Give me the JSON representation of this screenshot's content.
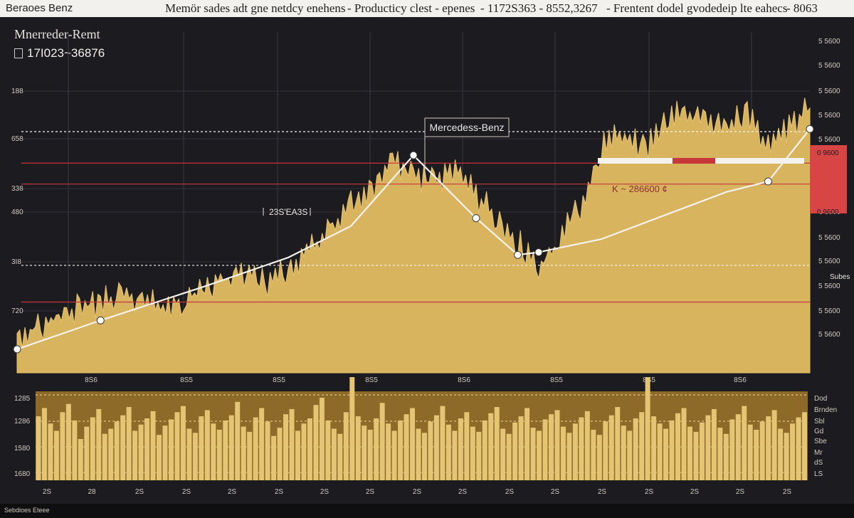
{
  "header": {
    "brand": "Beraoes Benz",
    "items": [
      "Memör sades adt gne netdcy enehens",
      "- Producticy clest - epenes",
      "- 1172S363 - 8552,3267",
      "- Frentent dodel gvodedeip lte eahecs",
      "- 8063"
    ]
  },
  "ticker": {
    "name": "Mnerreder-Remt",
    "range": "17I023~36876"
  },
  "annotations": {
    "callout": "Mercedess-Benz",
    "label_mid": "23S'EA3S",
    "label_right": "K ~ 286600 ¢",
    "right_badge_1": "0 9600",
    "right_badge_2": "0 9600",
    "right_side_label": "Subes"
  },
  "footer": {
    "text": "Sebdioes Eteee"
  },
  "colors": {
    "background": "#1c1b1f",
    "price_fill": "#d9b45f",
    "volume_bar": "#e3c574",
    "volume_panel": "#8e6a28",
    "trend_line": "#f4f2ee",
    "red_line": "#c8373a",
    "red_badge": "#d84545"
  },
  "chart_data": [
    {
      "type": "area",
      "title": "Mercedess-Benz",
      "y_tick_labels_left": [
        "188",
        "658",
        "338",
        "480",
        "3I8",
        "720"
      ],
      "y_tick_labels_right": [
        "5 5600",
        "5 5600",
        "5 5600",
        "5 5600",
        "5 5600",
        "0 9600",
        "5 5600",
        "0 9600",
        "5 5600",
        "5 5600",
        "5 5600",
        "5 5600",
        "5 5600",
        "5 5600"
      ],
      "x_tick_labels": [
        "8S6",
        "8S5",
        "8S5",
        "8S5",
        "8S6",
        "8S5",
        "8S5",
        "8S6"
      ],
      "price_series": [
        {
          "x": 0,
          "y": 15
        },
        {
          "x": 1,
          "y": 17
        },
        {
          "x": 2,
          "y": 22
        },
        {
          "x": 3,
          "y": 25
        },
        {
          "x": 4,
          "y": 27
        },
        {
          "x": 5,
          "y": 30
        },
        {
          "x": 6,
          "y": 27
        },
        {
          "x": 7,
          "y": 25
        },
        {
          "x": 8,
          "y": 28
        },
        {
          "x": 9,
          "y": 33
        },
        {
          "x": 10,
          "y": 36
        },
        {
          "x": 11,
          "y": 38
        },
        {
          "x": 12,
          "y": 34
        },
        {
          "x": 13,
          "y": 40
        },
        {
          "x": 14,
          "y": 47
        },
        {
          "x": 15,
          "y": 54
        },
        {
          "x": 16,
          "y": 64
        },
        {
          "x": 17,
          "y": 70
        },
        {
          "x": 18,
          "y": 80
        },
        {
          "x": 19,
          "y": 76
        },
        {
          "x": 20,
          "y": 72
        },
        {
          "x": 21,
          "y": 78
        },
        {
          "x": 22,
          "y": 68
        },
        {
          "x": 23,
          "y": 59
        },
        {
          "x": 24,
          "y": 50
        },
        {
          "x": 25,
          "y": 40
        },
        {
          "x": 26,
          "y": 50
        },
        {
          "x": 27,
          "y": 64
        },
        {
          "x": 28,
          "y": 86
        },
        {
          "x": 29,
          "y": 91
        },
        {
          "x": 30,
          "y": 85
        },
        {
          "x": 31,
          "y": 95
        },
        {
          "x": 32,
          "y": 100
        },
        {
          "x": 33,
          "y": 97
        },
        {
          "x": 34,
          "y": 94
        },
        {
          "x": 35,
          "y": 100
        },
        {
          "x": 36,
          "y": 85
        },
        {
          "x": 37,
          "y": 93
        },
        {
          "x": 38,
          "y": 101
        }
      ],
      "trend_line": [
        {
          "x": 0,
          "y": 9
        },
        {
          "x": 4,
          "y": 20
        },
        {
          "x": 9,
          "y": 33
        },
        {
          "x": 13,
          "y": 44
        },
        {
          "x": 16,
          "y": 56
        },
        {
          "x": 19,
          "y": 83
        },
        {
          "x": 22,
          "y": 59
        },
        {
          "x": 24,
          "y": 45
        },
        {
          "x": 25,
          "y": 46
        },
        {
          "x": 28,
          "y": 51
        },
        {
          "x": 34,
          "y": 69
        },
        {
          "x": 36,
          "y": 73
        },
        {
          "x": 38,
          "y": 93
        }
      ],
      "markers": [
        {
          "x": 0,
          "y": 9
        },
        {
          "x": 4,
          "y": 20
        },
        {
          "x": 19,
          "y": 83
        },
        {
          "x": 22,
          "y": 59
        },
        {
          "x": 24,
          "y": 45
        },
        {
          "x": 25,
          "y": 46
        },
        {
          "x": 36,
          "y": 73
        },
        {
          "x": 38,
          "y": 93
        }
      ],
      "horizontal_lines": [
        {
          "y": 92,
          "style": "dashed",
          "color": "#f4f2ee"
        },
        {
          "y": 80,
          "style": "solid",
          "color": "#c8373a"
        },
        {
          "y": 72,
          "style": "solid",
          "color": "#c8373a"
        },
        {
          "y": 41,
          "style": "dashed",
          "color": "#f4f2ee"
        },
        {
          "y": 27,
          "style": "solid",
          "color": "#c8373a"
        }
      ],
      "ylim": [
        0,
        130
      ]
    },
    {
      "type": "bar",
      "y_tick_labels_left": [
        "1285",
        "1286",
        "1580",
        "1680"
      ],
      "y_tick_labels_right": [
        "Dod",
        "Brnden",
        "Sbl",
        "Gd",
        "Sbe",
        "Mr",
        "dS",
        "LS"
      ],
      "x_tick_labels": [
        "2S",
        "28",
        "2S",
        "2S",
        "2S",
        "2S",
        "2S",
        "2S",
        "2S",
        "2S",
        "2S",
        "2S",
        "2S",
        "2S",
        "2S",
        "2S",
        "2S"
      ],
      "values": [
        62,
        70,
        55,
        48,
        66,
        74,
        58,
        40,
        52,
        61,
        69,
        45,
        50,
        57,
        63,
        71,
        48,
        54,
        60,
        67,
        44,
        53,
        59,
        66,
        72,
        50,
        46,
        62,
        68,
        55,
        49,
        58,
        63,
        76,
        52,
        47,
        61,
        70,
        57,
        43,
        51,
        64,
        69,
        48,
        55,
        60,
        73,
        80,
        58,
        50,
        45,
        66,
        100,
        62,
        53,
        49,
        60,
        75,
        55,
        48,
        58,
        64,
        70,
        50,
        46,
        57,
        63,
        72,
        54,
        48,
        60,
        66,
        52,
        47,
        58,
        65,
        71,
        50,
        45,
        56,
        62,
        70,
        51,
        48,
        59,
        64,
        68,
        52,
        46,
        55,
        61,
        67,
        49,
        44,
        57,
        63,
        71,
        53,
        48,
        60,
        66,
        100,
        62,
        55,
        50,
        58,
        65,
        70,
        52,
        47,
        56,
        63,
        69,
        51,
        45,
        59,
        64,
        72,
        54,
        49,
        57,
        62,
        68,
        50,
        46,
        55,
        61,
        66
      ],
      "ylim": [
        0,
        100
      ]
    }
  ]
}
